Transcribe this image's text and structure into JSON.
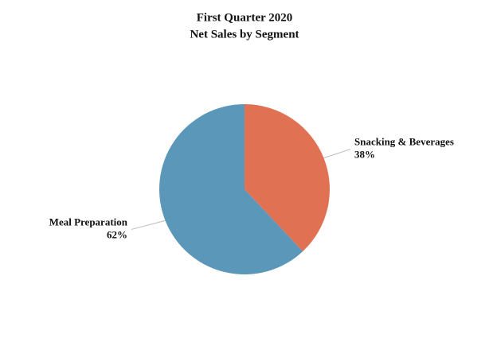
{
  "chart_data": {
    "type": "pie",
    "title": "First Quarter 2020",
    "subtitle": "Net Sales by Segment",
    "categories": [
      "Snacking & Beverages",
      "Meal Preparation"
    ],
    "values": [
      38,
      62
    ],
    "value_labels": [
      "38%",
      "62%"
    ],
    "colors": [
      "#e07153",
      "#5b97b8"
    ]
  }
}
